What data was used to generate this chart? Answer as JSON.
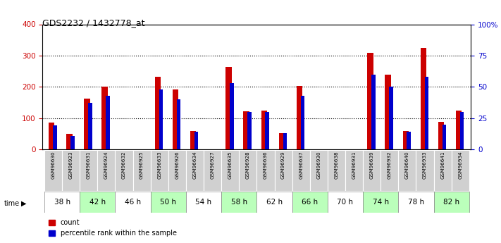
{
  "title": "GDS2232 / 1432778_at",
  "samples": [
    "GSM96630",
    "GSM96923",
    "GSM96631",
    "GSM96924",
    "GSM96632",
    "GSM96925",
    "GSM96633",
    "GSM96926",
    "GSM96634",
    "GSM96927",
    "GSM96635",
    "GSM96928",
    "GSM96636",
    "GSM96929",
    "GSM96637",
    "GSM96930",
    "GSM96638",
    "GSM96931",
    "GSM96639",
    "GSM96932",
    "GSM96640",
    "GSM96933",
    "GSM96641",
    "GSM96934"
  ],
  "count": [
    85,
    50,
    162,
    200,
    0,
    0,
    232,
    192,
    60,
    0,
    264,
    122,
    124,
    52,
    202,
    0,
    0,
    0,
    308,
    240,
    60,
    325,
    88,
    125
  ],
  "percentile_rank": [
    19,
    11,
    37,
    43,
    0,
    0,
    48,
    40,
    14,
    0,
    53,
    30,
    30,
    13,
    43,
    0,
    0,
    0,
    60,
    50,
    14,
    58,
    20,
    30
  ],
  "time_groups": [
    {
      "label": "38 h",
      "indices": [
        0,
        1
      ],
      "color": "#ffffff"
    },
    {
      "label": "42 h",
      "indices": [
        2,
        3
      ],
      "color": "#bbffbb"
    },
    {
      "label": "46 h",
      "indices": [
        4,
        5
      ],
      "color": "#ffffff"
    },
    {
      "label": "50 h",
      "indices": [
        6,
        7
      ],
      "color": "#bbffbb"
    },
    {
      "label": "54 h",
      "indices": [
        8,
        9
      ],
      "color": "#ffffff"
    },
    {
      "label": "58 h",
      "indices": [
        10,
        11
      ],
      "color": "#bbffbb"
    },
    {
      "label": "62 h",
      "indices": [
        12,
        13
      ],
      "color": "#ffffff"
    },
    {
      "label": "66 h",
      "indices": [
        14,
        15
      ],
      "color": "#bbffbb"
    },
    {
      "label": "70 h",
      "indices": [
        16,
        17
      ],
      "color": "#ffffff"
    },
    {
      "label": "74 h",
      "indices": [
        18,
        19
      ],
      "color": "#bbffbb"
    },
    {
      "label": "78 h",
      "indices": [
        20,
        21
      ],
      "color": "#ffffff"
    },
    {
      "label": "82 h",
      "indices": [
        22,
        23
      ],
      "color": "#bbffbb"
    }
  ],
  "ylim_left": [
    0,
    400
  ],
  "ylim_right": [
    0,
    100
  ],
  "yticks_left": [
    0,
    100,
    200,
    300,
    400
  ],
  "yticks_right": [
    0,
    25,
    50,
    75,
    100
  ],
  "ytick_labels_right": [
    "0",
    "25",
    "50",
    "75",
    "100%"
  ],
  "bar_color_count": "#cc0000",
  "bar_color_pct": "#0000cc",
  "sample_bg": "#d0d0d0",
  "legend_count": "count",
  "legend_pct": "percentile rank within the sample"
}
